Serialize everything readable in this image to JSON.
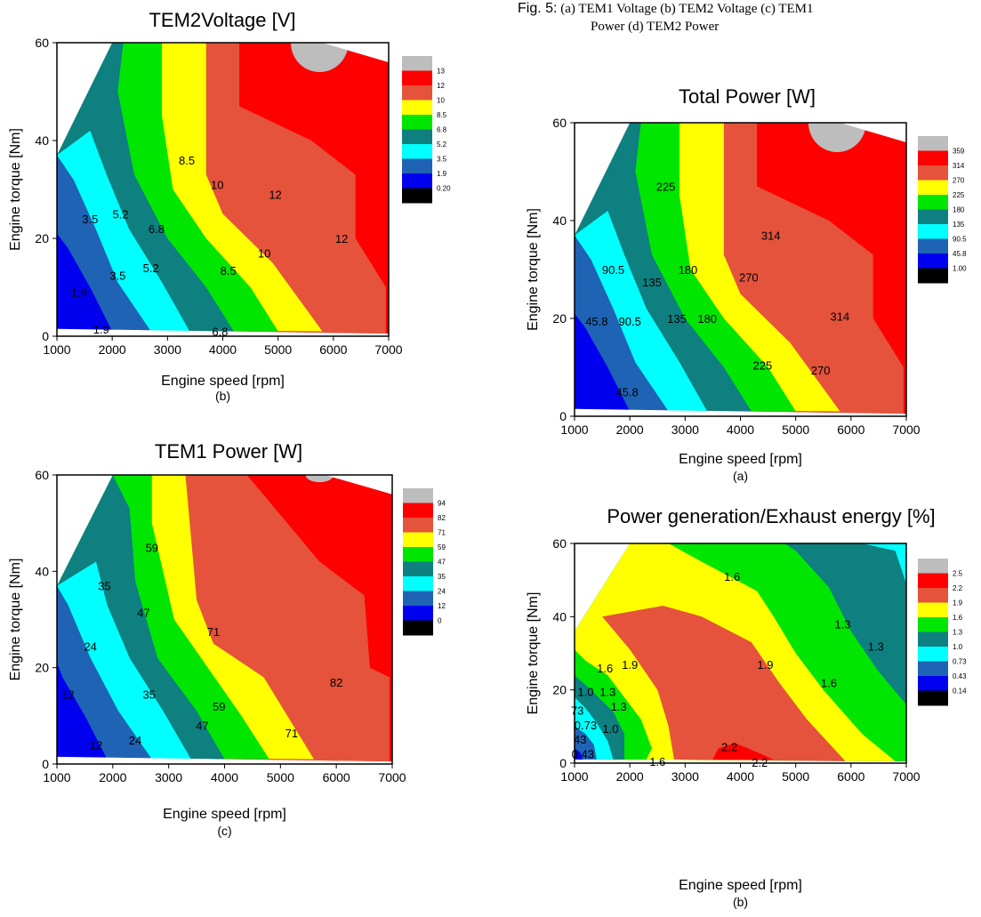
{
  "figure_caption": {
    "fig_label": "Fig. 5:",
    "line1": "(a) TEM1 Voltage (b) TEM2 Voltage (c) TEM1",
    "line2": "Power (d) TEM2 Power"
  },
  "chart_data": [
    {
      "id": "tem2-voltage",
      "type": "contour",
      "title": "TEM2Voltage [V]",
      "xlabel": "Engine speed [rpm]",
      "ylabel": "Engine torque [Nm]",
      "panel_label": "(b)",
      "xlim": [
        1000,
        7000
      ],
      "ylim": [
        0,
        60
      ],
      "x_ticks": [
        "1000",
        "2000",
        "3000",
        "4000",
        "5000",
        "6000",
        "7000"
      ],
      "y_ticks": [
        "0",
        "20",
        "40",
        "60"
      ],
      "levels": [
        "13",
        "12",
        "10",
        "8.5",
        "6.8",
        "5.2",
        "3.5",
        "1.9",
        "0.20"
      ],
      "level_colors": [
        "#bdbdbd",
        "#ff0000",
        "#e5533c",
        "#ffff00",
        "#00e600",
        "#0e8080",
        "#00ffff",
        "#1f63b5",
        "#0000ee",
        "#000000"
      ],
      "contour_labels": [
        {
          "text": "8.5",
          "x": 3350,
          "y": 36
        },
        {
          "text": "10",
          "x": 3900,
          "y": 31
        },
        {
          "text": "12",
          "x": 4950,
          "y": 29
        },
        {
          "text": "3.5",
          "x": 1600,
          "y": 24
        },
        {
          "text": "5.2",
          "x": 2150,
          "y": 25
        },
        {
          "text": "6.8",
          "x": 2800,
          "y": 22
        },
        {
          "text": "12",
          "x": 6150,
          "y": 20
        },
        {
          "text": "10",
          "x": 4750,
          "y": 17
        },
        {
          "text": "3.5",
          "x": 2100,
          "y": 12.5
        },
        {
          "text": "5.2",
          "x": 2700,
          "y": 14
        },
        {
          "text": "8.5",
          "x": 4100,
          "y": 13.5
        },
        {
          "text": "1.9",
          "x": 1400,
          "y": 9
        },
        {
          "text": "1.9",
          "x": 1800,
          "y": 1.5
        },
        {
          "text": "6.8",
          "x": 3950,
          "y": 1
        }
      ]
    },
    {
      "id": "total-power",
      "type": "contour",
      "title": "Total Power [W]",
      "xlabel": "Engine speed [rpm]",
      "ylabel": "Engine torque [Nm]",
      "panel_label": "(a)",
      "xlim": [
        1000,
        7000
      ],
      "ylim": [
        0,
        60
      ],
      "x_ticks": [
        "1000",
        "2000",
        "3000",
        "4000",
        "5000",
        "6000",
        "7000"
      ],
      "y_ticks": [
        "0",
        "20",
        "40",
        "60"
      ],
      "levels": [
        "359",
        "314",
        "270",
        "225",
        "180",
        "135",
        "90.5",
        "45.8",
        "1.00"
      ],
      "level_colors": [
        "#bdbdbd",
        "#ff0000",
        "#e5533c",
        "#ffff00",
        "#00e600",
        "#0e8080",
        "#00ffff",
        "#1f63b5",
        "#0000ee",
        "#000000"
      ],
      "contour_labels": [
        {
          "text": "225",
          "x": 2650,
          "y": 47
        },
        {
          "text": "314",
          "x": 4550,
          "y": 37
        },
        {
          "text": "90.5",
          "x": 1700,
          "y": 30
        },
        {
          "text": "180",
          "x": 3050,
          "y": 30
        },
        {
          "text": "270",
          "x": 4150,
          "y": 28.5
        },
        {
          "text": "135",
          "x": 2400,
          "y": 27.5
        },
        {
          "text": "314",
          "x": 5800,
          "y": 20.5
        },
        {
          "text": "45.8",
          "x": 1400,
          "y": 19.5
        },
        {
          "text": "135",
          "x": 2850,
          "y": 20
        },
        {
          "text": "180",
          "x": 3400,
          "y": 20
        },
        {
          "text": "90.5",
          "x": 2000,
          "y": 19.5
        },
        {
          "text": "225",
          "x": 4400,
          "y": 10.5
        },
        {
          "text": "270",
          "x": 5450,
          "y": 9.5
        },
        {
          "text": "45.8",
          "x": 1950,
          "y": 5
        }
      ]
    },
    {
      "id": "tem1-power",
      "type": "contour",
      "title": "TEM1 Power [W]",
      "xlabel": "Engine speed [rpm]",
      "ylabel": "Engine torque [Nm]",
      "panel_label": "(c)",
      "xlim": [
        1000,
        7000
      ],
      "ylim": [
        0,
        60
      ],
      "x_ticks": [
        "1000",
        "2000",
        "3000",
        "4000",
        "5000",
        "6000",
        "7000"
      ],
      "y_ticks": [
        "0",
        "20",
        "40",
        "60"
      ],
      "levels": [
        "94",
        "82",
        "71",
        "59",
        "47",
        "35",
        "24",
        "12",
        "0"
      ],
      "level_colors": [
        "#bdbdbd",
        "#ff0000",
        "#e5533c",
        "#ffff00",
        "#00e600",
        "#0e8080",
        "#00ffff",
        "#1f63b5",
        "#0000ee",
        "#000000"
      ],
      "contour_labels": [
        {
          "text": "59",
          "x": 2700,
          "y": 45
        },
        {
          "text": "35",
          "x": 1850,
          "y": 37
        },
        {
          "text": "47",
          "x": 2550,
          "y": 31.5
        },
        {
          "text": "71",
          "x": 3800,
          "y": 27.5
        },
        {
          "text": "24",
          "x": 1600,
          "y": 24.5
        },
        {
          "text": "82",
          "x": 6000,
          "y": 17
        },
        {
          "text": "35",
          "x": 2650,
          "y": 14.5
        },
        {
          "text": "59",
          "x": 3900,
          "y": 12
        },
        {
          "text": "47",
          "x": 3600,
          "y": 8
        },
        {
          "text": "71",
          "x": 5200,
          "y": 6.5
        },
        {
          "text": "12",
          "x": 1200,
          "y": 14.5
        },
        {
          "text": "24",
          "x": 2400,
          "y": 5
        },
        {
          "text": "12",
          "x": 1700,
          "y": 4
        }
      ]
    },
    {
      "id": "power-exhaust",
      "type": "contour",
      "title": "Power generation/Exhaust energy [%]",
      "xlabel": "Engine speed [rpm]",
      "ylabel": "Engine torque [Nm]",
      "panel_label": "(b)",
      "xlim": [
        1000,
        7000
      ],
      "ylim": [
        0,
        60
      ],
      "x_ticks": [
        "1000",
        "2000",
        "3000",
        "4000",
        "5000",
        "6000",
        "7000"
      ],
      "y_ticks": [
        "0",
        "20",
        "40",
        "60"
      ],
      "levels": [
        "2.5",
        "2.2",
        "1.9",
        "1.6",
        "1.3",
        "1.0",
        "0.73",
        "0.43",
        "0.14"
      ],
      "level_colors": [
        "#bdbdbd",
        "#ff0000",
        "#e5533c",
        "#ffff00",
        "#00e600",
        "#0e8080",
        "#00ffff",
        "#1f63b5",
        "#0000ee",
        "#000000"
      ],
      "contour_labels": [
        {
          "text": "1.6",
          "x": 3850,
          "y": 51
        },
        {
          "text": "1.3",
          "x": 5850,
          "y": 38
        },
        {
          "text": "1.3",
          "x": 6450,
          "y": 32
        },
        {
          "text": "1.9",
          "x": 2000,
          "y": 27
        },
        {
          "text": "1.9",
          "x": 4450,
          "y": 27
        },
        {
          "text": "1.6",
          "x": 1550,
          "y": 26
        },
        {
          "text": "1.6",
          "x": 5600,
          "y": 22
        },
        {
          "text": "1.0",
          "x": 1200,
          "y": 19.5
        },
        {
          "text": "1.3",
          "x": 1600,
          "y": 19.5
        },
        {
          "text": "1.3",
          "x": 1800,
          "y": 15.5
        },
        {
          "text": "73",
          "x": 1050,
          "y": 14.5
        },
        {
          "text": "0.73",
          "x": 1200,
          "y": 10.5
        },
        {
          "text": "1.0",
          "x": 1650,
          "y": 9.5
        },
        {
          "text": "43",
          "x": 1100,
          "y": 6.5
        },
        {
          "text": "2.2",
          "x": 3800,
          "y": 4.5
        },
        {
          "text": "0.43",
          "x": 1150,
          "y": 2.5
        },
        {
          "text": "1.6",
          "x": 2500,
          "y": 0.5
        },
        {
          "text": "2.2",
          "x": 4350,
          "y": 0.3
        }
      ]
    }
  ]
}
